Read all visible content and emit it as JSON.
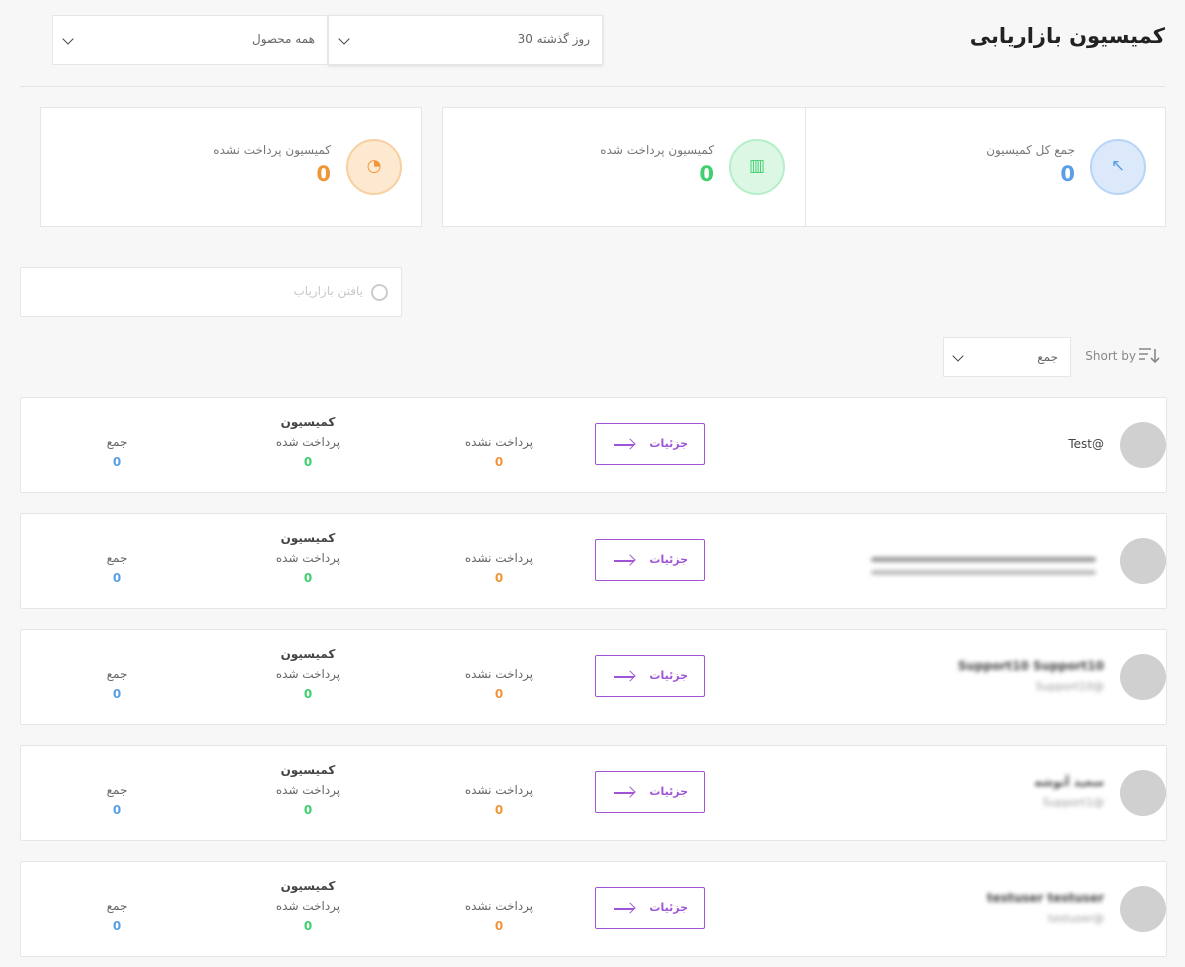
{
  "header": {
    "title": "کمیسیون بازاریابی"
  },
  "filters": {
    "period": "30 روز گذشته",
    "product": "همه محصول"
  },
  "stats": [
    {
      "label": "جمع کل کمیسیون",
      "value": 0,
      "color": "#5b9ee6"
    },
    {
      "label": "کمیسیون پرداخت شده",
      "value": 0,
      "color": "#3ecf6e"
    },
    {
      "label": "کمیسیون پرداخت نشده",
      "value": 0,
      "color": "#f0963a"
    }
  ],
  "search": {
    "placeholder": "یافتن بازاریاب"
  },
  "sort": {
    "label": "Short by",
    "option": "جمع"
  },
  "rows": [
    {
      "name": "Test@",
      "details": "جزئیات",
      "unpaid_label": "پرداخت نشده",
      "unpaid": 0,
      "commission_label": "کمیسیون",
      "paid_label": "پرداخت شده",
      "paid": 0,
      "total_label": "جمع",
      "total": 0
    },
    {
      "details": "جزئیات",
      "unpaid_label": "پرداخت نشده",
      "unpaid": 0,
      "commission_label": "کمیسیون",
      "paid_label": "پرداخت شده",
      "paid": 0,
      "total_label": "جمع",
      "total": 0
    },
    {
      "name": "Support10 Support10",
      "username": "Support10@",
      "details": "جزئیات",
      "unpaid_label": "پرداخت نشده",
      "unpaid": 0,
      "commission_label": "کمیسیون",
      "paid_label": "پرداخت شده",
      "paid": 0,
      "total_label": "جمع",
      "total": 0
    },
    {
      "name": "سعید آتوشه",
      "username": "Support1@",
      "details": "جزئیات",
      "unpaid_label": "پرداخت نشده",
      "unpaid": 0,
      "commission_label": "کمیسیون",
      "paid_label": "پرداخت شده",
      "paid": 0,
      "total_label": "جمع",
      "total": 0
    },
    {
      "name": "testuser testuser",
      "username": "testuser@",
      "details": "جزئیات",
      "unpaid_label": "پرداخت نشده",
      "unpaid": 0,
      "commission_label": "کمیسیون",
      "paid_label": "پرداخت شده",
      "paid": 0,
      "total_label": "جمع",
      "total": 0
    }
  ]
}
